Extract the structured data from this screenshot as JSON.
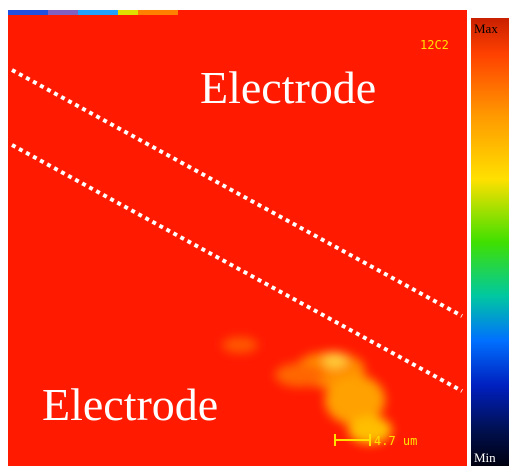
{
  "image": {
    "label": "12C2",
    "top_region": "Electrode",
    "bottom_region": "Electrode",
    "scale_bar": "4.7 um"
  },
  "colorbar": {
    "max": "Max",
    "min": "Min"
  }
}
